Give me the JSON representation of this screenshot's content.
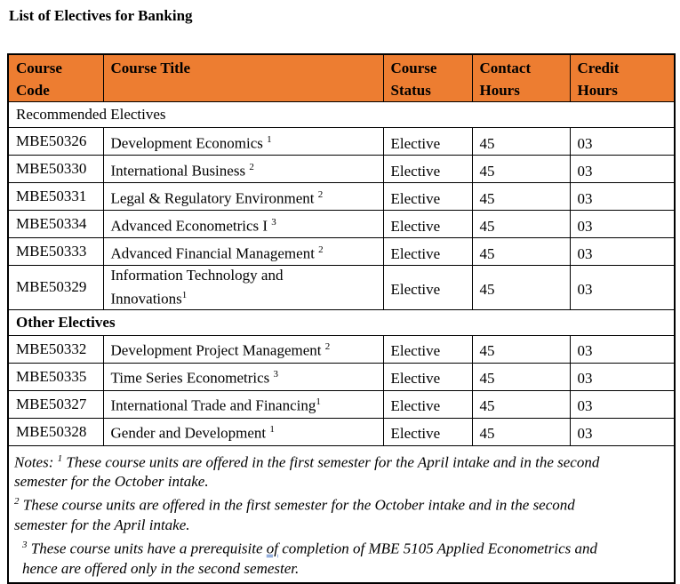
{
  "title": "List of Electives for Banking",
  "colors": {
    "header_bg": "#ED7D31",
    "border": "#000000",
    "grammar_underline": "#4472C4"
  },
  "table": {
    "headers": [
      "Course\nCode",
      "Course Title",
      "Course\nStatus",
      "Contact\nHours",
      "Credit\nHours"
    ],
    "sections": [
      {
        "label": "Recommended Electives",
        "bold": false,
        "rows": [
          {
            "code": "MBE50326",
            "title": "Development Economics ",
            "sup": "1",
            "status": "Elective",
            "contact": "45",
            "credit": "03"
          },
          {
            "code": "MBE50330",
            "title": "International Business ",
            "sup": "2",
            "status": "Elective",
            "contact": "45",
            "credit": "03"
          },
          {
            "code": "MBE50331",
            "title": "Legal & Regulatory Environment ",
            "sup": "2",
            "status": "Elective",
            "contact": "45",
            "credit": "03"
          },
          {
            "code": "MBE50334",
            "title": "Advanced Econometrics I ",
            "sup": "3",
            "status": "Elective",
            "contact": "45",
            "credit": "03"
          },
          {
            "code": "MBE50333",
            "title": "Advanced Financial Management ",
            "sup": "2",
            "status": "Elective",
            "contact": "45",
            "credit": "03"
          },
          {
            "code": "MBE50329",
            "title": "Information Technology and\nInnovations",
            "sup": "1",
            "status": "Elective",
            "contact": "45",
            "credit": "03"
          }
        ]
      },
      {
        "label": "Other Electives",
        "bold": true,
        "rows": [
          {
            "code": "MBE50332",
            "title": "Development Project Management ",
            "sup": "2",
            "status": "Elective",
            "contact": "45",
            "credit": "03"
          },
          {
            "code": "MBE50335",
            "title": "Time Series Econometrics ",
            "sup": "3",
            "status": "Elective",
            "contact": "45",
            "credit": "03"
          },
          {
            "code": "MBE50327",
            "title": "International Trade and Financing",
            "sup": "1",
            "status": "Elective",
            "contact": "45",
            "credit": "03"
          },
          {
            "code": "MBE50328",
            "title": "Gender and Development ",
            "sup": "1",
            "status": "Elective",
            "contact": "45",
            "credit": "03"
          }
        ]
      }
    ],
    "notes": [
      {
        "indent": false,
        "segments": [
          {
            "t": "text",
            "v": "Notes: "
          },
          {
            "t": "sup",
            "v": "1"
          },
          {
            "t": "text",
            "v": " These course units are offered in the first semester for the April intake and in the second\nsemester for the October intake."
          }
        ]
      },
      {
        "indent": false,
        "segments": [
          {
            "t": "sup",
            "v": "2"
          },
          {
            "t": "text",
            "v": " These course units are offered in the first semester for the October intake and in the second\nsemester for the April intake."
          }
        ]
      },
      {
        "indent": true,
        "segments": [
          {
            "t": "sup",
            "v": "3"
          },
          {
            "t": "text",
            "v": " These course units have a prerequisite "
          },
          {
            "t": "u",
            "v": "of"
          },
          {
            "t": "text",
            "v": " completion of MBE 5105 Applied Econometrics and\nhence are offered only in the second semester."
          }
        ]
      }
    ]
  }
}
